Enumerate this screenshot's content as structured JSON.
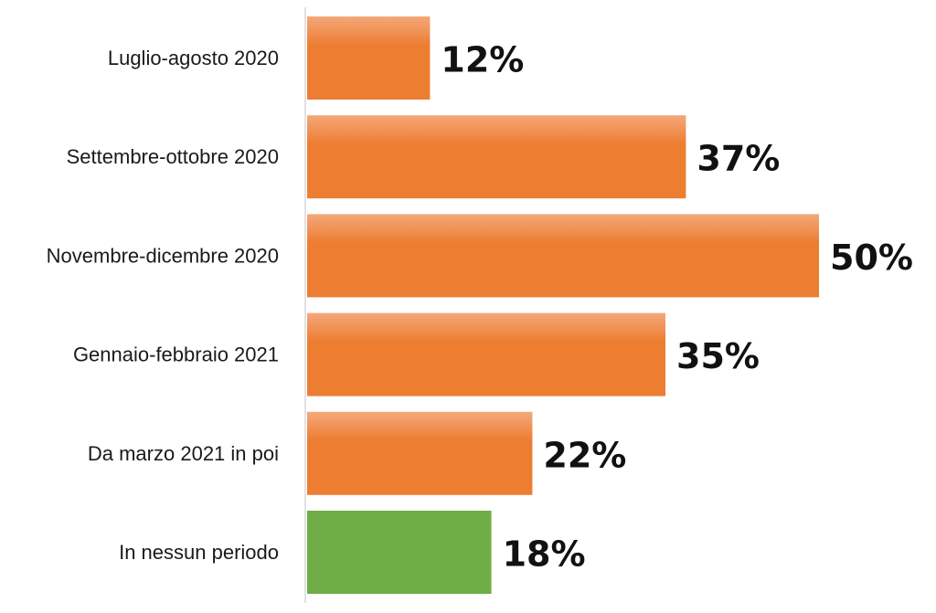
{
  "chart_data": {
    "type": "bar",
    "orientation": "horizontal",
    "categories": [
      "Luglio-agosto 2020",
      "Settembre-ottobre 2020",
      "Novembre-dicembre 2020",
      "Gennaio-febbraio 2021",
      "Da marzo 2021 in poi",
      "In nessun periodo"
    ],
    "values": [
      12,
      37,
      50,
      35,
      22,
      18
    ],
    "value_labels": [
      "12%",
      "37%",
      "50%",
      "35%",
      "22%",
      "18%"
    ],
    "bar_colors": [
      "#ED7D31",
      "#ED7D31",
      "#ED7D31",
      "#ED7D31",
      "#ED7D31",
      "#70AD47"
    ],
    "xlim": [
      0,
      50
    ],
    "grid": false,
    "legend": "none"
  },
  "colors": {
    "orange_bar": "#ED7D31",
    "orange_bar_highlight": "#F4A87A",
    "green_bar": "#70AD47",
    "axis_line": "#D9D9D9"
  }
}
